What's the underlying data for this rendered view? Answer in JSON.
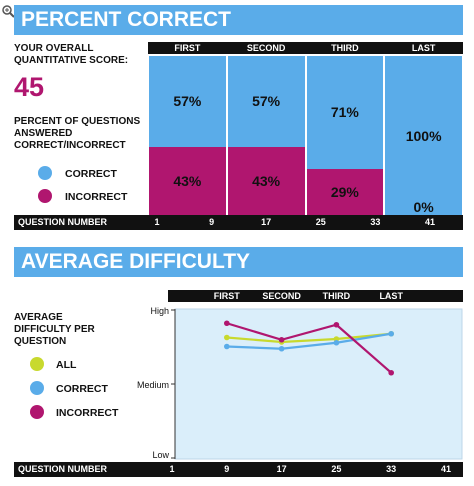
{
  "banner1": "PERCENT CORRECT",
  "banner2": "AVERAGE DIFFICULTY",
  "score_label_1": "YOUR OVERALL",
  "score_label_2": "QUANTITATIVE SCORE:",
  "score": "45",
  "pct_label_1": "PERCENT OF QUESTIONS",
  "pct_label_2": "ANSWERED",
  "pct_label_3": "CORRECT/INCORRECT",
  "diff_label_1": "AVERAGE",
  "diff_label_2": "DIFFICULTY PER",
  "diff_label_3": "QUESTION",
  "legend1": [
    {
      "label": "CORRECT",
      "color": "#5aace9"
    },
    {
      "label": "INCORRECT",
      "color": "#b0166f"
    }
  ],
  "legend2": [
    {
      "label": "ALL",
      "color": "#c8d92e"
    },
    {
      "label": "CORRECT",
      "color": "#5aace9"
    },
    {
      "label": "INCORRECT",
      "color": "#b0166f"
    }
  ],
  "question_number_label": "QUESTION NUMBER",
  "colors": {
    "correct": "#5aace9",
    "incorrect": "#b0166f",
    "all": "#c8d92e",
    "plot_bg": "#daeefa"
  },
  "chart_data": [
    {
      "type": "bar",
      "categories": [
        "FIRST",
        "SECOND",
        "THIRD",
        "LAST"
      ],
      "series": [
        {
          "name": "CORRECT",
          "values": [
            57,
            57,
            71,
            100
          ]
        },
        {
          "name": "INCORRECT",
          "values": [
            43,
            43,
            29,
            0
          ]
        }
      ],
      "value_labels": [
        [
          "57%",
          "57%",
          "71%",
          "100%"
        ],
        [
          "43%",
          "43%",
          "29%",
          "0%"
        ]
      ],
      "x_ticks": [
        "1",
        "9",
        "17",
        "25",
        "33",
        "41"
      ],
      "xlabel": "QUESTION NUMBER",
      "stacked": true,
      "ylim": [
        0,
        100
      ]
    },
    {
      "type": "line",
      "categories": [
        "FIRST",
        "SECOND",
        "THIRD",
        "LAST"
      ],
      "x": [
        9,
        17,
        25,
        33
      ],
      "x_ticks": [
        "1",
        "9",
        "17",
        "25",
        "33",
        "41"
      ],
      "y_ticks": [
        "High",
        "Medium",
        "Low"
      ],
      "xlabel": "QUESTION NUMBER",
      "series": [
        {
          "name": "ALL",
          "values": [
            0.62,
            0.56,
            0.6,
            0.67
          ]
        },
        {
          "name": "CORRECT",
          "values": [
            0.5,
            0.47,
            0.55,
            0.67
          ]
        },
        {
          "name": "INCORRECT",
          "values": [
            0.81,
            0.59,
            0.79,
            0.15
          ]
        }
      ],
      "ylim": [
        -1,
        1
      ]
    }
  ]
}
